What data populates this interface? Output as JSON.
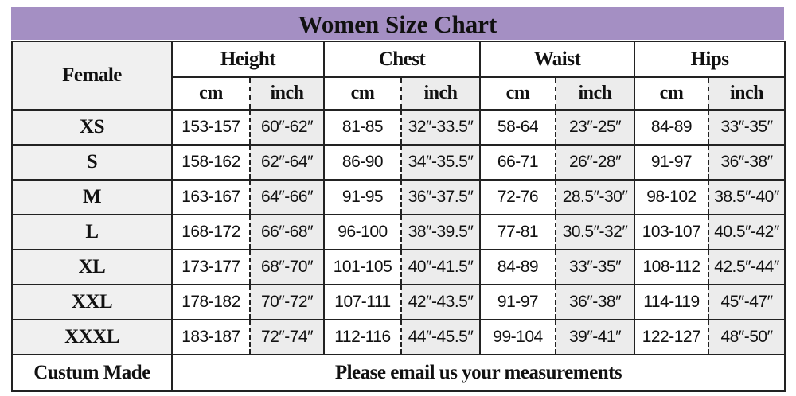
{
  "title": "Women Size Chart",
  "header": {
    "corner": "Female",
    "groups": [
      "Height",
      "Chest",
      "Waist",
      "Hips"
    ],
    "units": [
      "cm",
      "inch"
    ]
  },
  "rows": [
    {
      "size": "XS",
      "values": [
        "153-157",
        "60″-62″",
        "81-85",
        "32″-33.5″",
        "58-64",
        "23″-25″",
        "84-89",
        "33″-35″"
      ]
    },
    {
      "size": "S",
      "values": [
        "158-162",
        "62″-64″",
        "86-90",
        "34″-35.5″",
        "66-71",
        "26″-28″",
        "91-97",
        "36″-38″"
      ]
    },
    {
      "size": "M",
      "values": [
        "163-167",
        "64″-66″",
        "91-95",
        "36″-37.5″",
        "72-76",
        "28.5″-30″",
        "98-102",
        "38.5″-40″"
      ]
    },
    {
      "size": "L",
      "values": [
        "168-172",
        "66″-68″",
        "96-100",
        "38″-39.5″",
        "77-81",
        "30.5″-32″",
        "103-107",
        "40.5″-42″"
      ]
    },
    {
      "size": "XL",
      "values": [
        "173-177",
        "68″-70″",
        "101-105",
        "40″-41.5″",
        "84-89",
        "33″-35″",
        "108-112",
        "42.5″-44″"
      ]
    },
    {
      "size": "XXL",
      "values": [
        "178-182",
        "70″-72″",
        "107-111",
        "42″-43.5″",
        "91-97",
        "36″-38″",
        "114-119",
        "45″-47″"
      ]
    },
    {
      "size": "XXXL",
      "values": [
        "183-187",
        "72″-74″",
        "112-116",
        "44″-45.5″",
        "99-104",
        "39″-41″",
        "122-127",
        "48″-50″"
      ]
    }
  ],
  "footer": {
    "label": "Custum Made",
    "note": "Please email us your measurements"
  }
}
